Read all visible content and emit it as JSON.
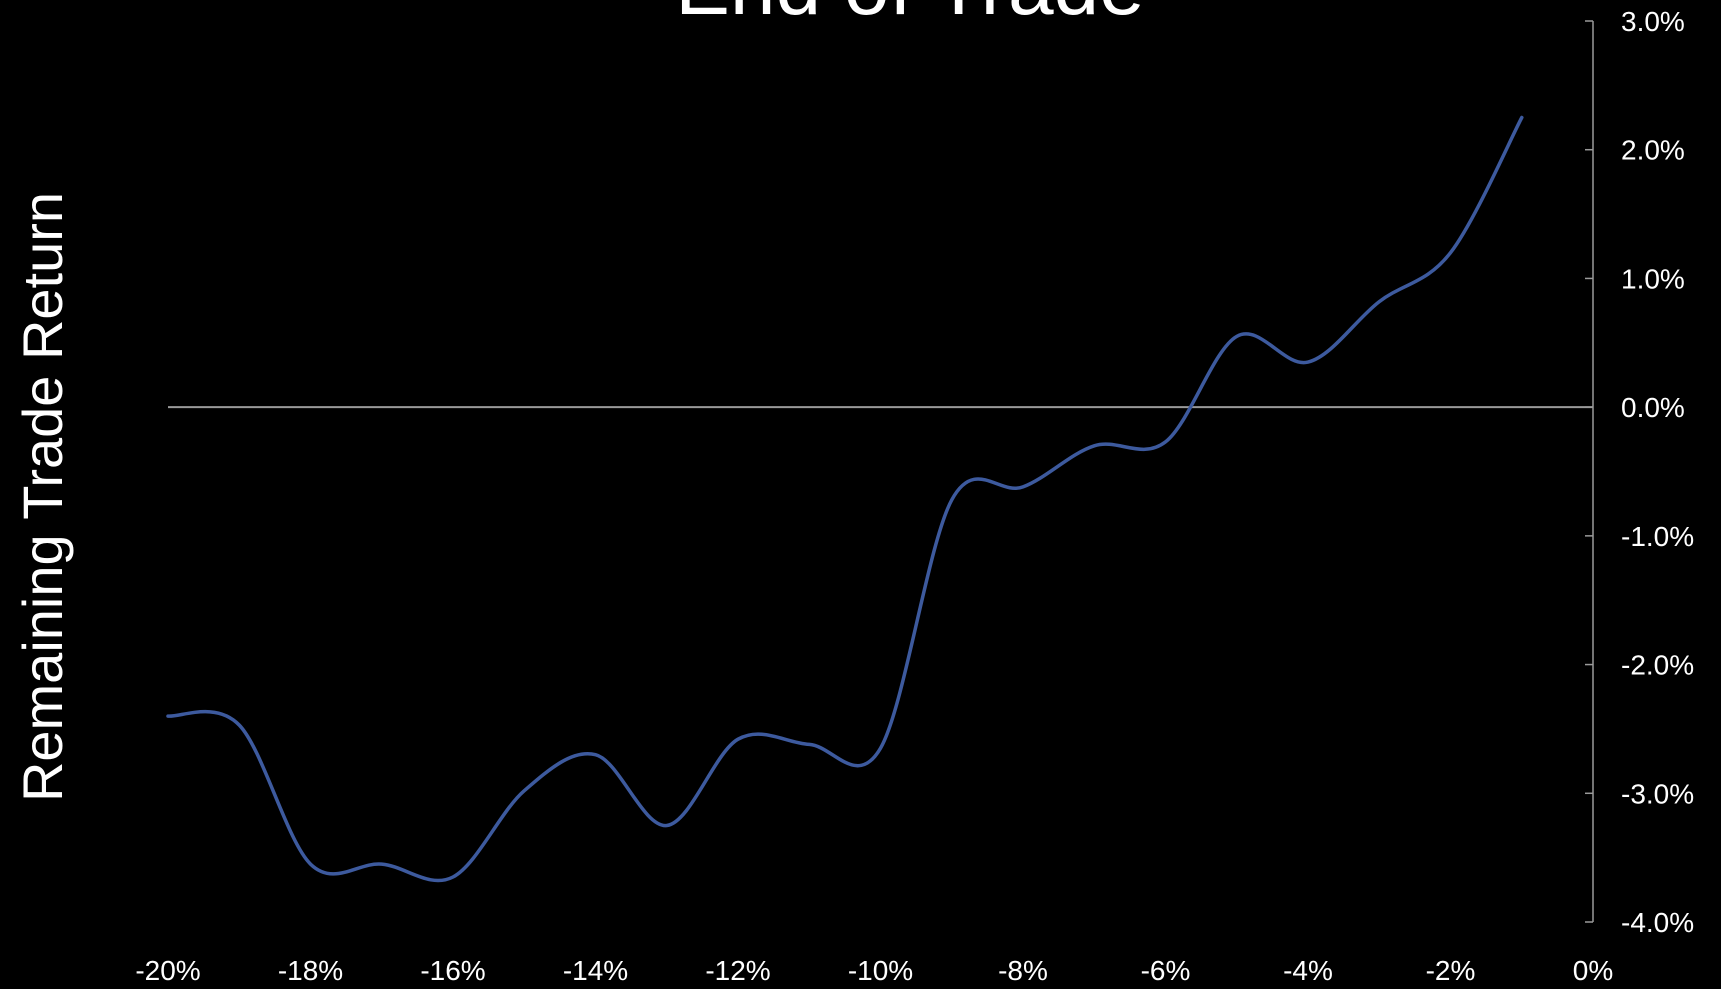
{
  "chart_data": {
    "type": "line",
    "title": "End of Trade",
    "xlabel": "",
    "ylabel": "Remaining Trade Return",
    "x_ticks": [
      "-20%",
      "-18%",
      "-16%",
      "-14%",
      "-12%",
      "-10%",
      "-8%",
      "-6%",
      "-4%",
      "-2%",
      "0%"
    ],
    "y_ticks": [
      "3.0%",
      "2.0%",
      "1.0%",
      "0.0%",
      "-1.0%",
      "-2.0%",
      "-3.0%",
      "-4.0%"
    ],
    "xlim": [
      -20,
      0
    ],
    "ylim": [
      -4.0,
      3.0
    ],
    "reference_line_y": 0.0,
    "grid": false,
    "legend": "none",
    "series": [
      {
        "color": "#3d5a9e",
        "points": [
          [
            -20.0,
            -2.4
          ],
          [
            -19.0,
            -2.47
          ],
          [
            -18.0,
            -3.55
          ],
          [
            -17.0,
            -3.55
          ],
          [
            -16.0,
            -3.65
          ],
          [
            -15.0,
            -2.98
          ],
          [
            -14.0,
            -2.7
          ],
          [
            -13.0,
            -3.25
          ],
          [
            -12.0,
            -2.58
          ],
          [
            -11.0,
            -2.62
          ],
          [
            -10.0,
            -2.65
          ],
          [
            -9.0,
            -0.72
          ],
          [
            -8.0,
            -0.62
          ],
          [
            -7.0,
            -0.3
          ],
          [
            -6.0,
            -0.27
          ],
          [
            -5.0,
            0.55
          ],
          [
            -4.0,
            0.35
          ],
          [
            -3.0,
            0.82
          ],
          [
            -2.0,
            1.2
          ],
          [
            -1.0,
            2.25
          ]
        ]
      }
    ],
    "colors": {
      "background": "#000000",
      "text": "#ffffff",
      "zero_line": "#9a9a9a",
      "axis": "#9a9a9a"
    }
  }
}
